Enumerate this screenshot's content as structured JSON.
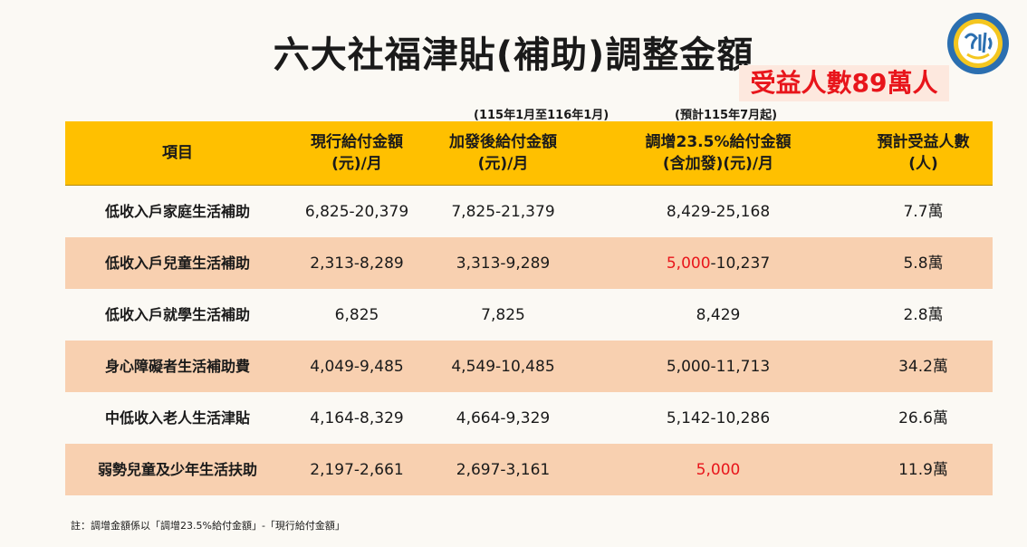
{
  "title": "六大社福津貼(補助)調整金額",
  "badge": "受益人數89萬人",
  "notes_above": {
    "col2": "(115年1月至116年1月)",
    "col3": "(預計115年7月起)"
  },
  "table": {
    "headers": [
      {
        "line1": "項目",
        "line2": ""
      },
      {
        "line1": "現行給付金額",
        "line2": "(元)/月"
      },
      {
        "line1": "加發後給付金額",
        "line2": "(元)/月"
      },
      {
        "line1": "調增23.5%給付金額",
        "line2": "(含加發)(元)/月"
      },
      {
        "line1": "預計受益人數",
        "line2": "(人)"
      }
    ],
    "rows": [
      {
        "item": "低收入戶家庭生活補助",
        "current": "6,825-20,379",
        "after": "7,825-21,379",
        "adj_red": "",
        "adj_rest": "8,429-25,168",
        "people": "7.7萬"
      },
      {
        "item": "低收入戶兒童生活補助",
        "current": "2,313-8,289",
        "after": "3,313-9,289",
        "adj_red": "5,000",
        "adj_rest": "-10,237",
        "people": "5.8萬"
      },
      {
        "item": "低收入戶就學生活補助",
        "current": "6,825",
        "after": "7,825",
        "adj_red": "",
        "adj_rest": "8,429",
        "people": "2.8萬"
      },
      {
        "item": "身心障礙者生活補助費",
        "current": "4,049-9,485",
        "after": "4,549-10,485",
        "adj_red": "",
        "adj_rest": "5,000-11,713",
        "people": "34.2萬"
      },
      {
        "item": "中低收入老人生活津貼",
        "current": "4,164-8,329",
        "after": "4,664-9,329",
        "adj_red": "",
        "adj_rest": "5,142-10,286",
        "people": "26.6萬"
      },
      {
        "item": "弱勢兒童及少年生活扶助",
        "current": "2,197-2,661",
        "after": "2,697-3,161",
        "adj_red": "5,000",
        "adj_rest": "",
        "people": "11.9萬"
      }
    ]
  },
  "footnote": "註：調增金額係以「調增23.5%給付金額」-「現行給付金額」",
  "colors": {
    "header_bg": "#ffc000",
    "shaded_row": "#f8d0b0",
    "highlight_red": "#e8151b",
    "badge_bg": "#fde8de"
  },
  "logo_icon": "ministry-seal-icon"
}
